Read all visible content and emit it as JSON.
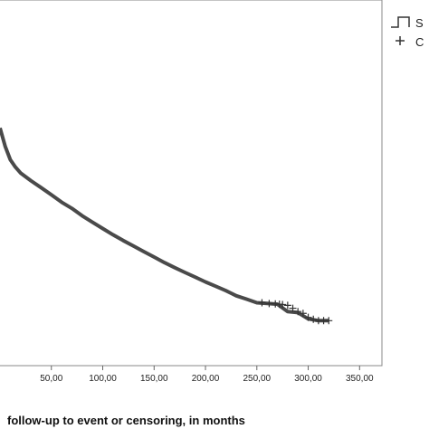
{
  "chart_data": {
    "type": "line",
    "title": "",
    "xlabel": "follow-up to event or censoring, in months",
    "ylabel": "",
    "xlim": [
      0,
      370
    ],
    "ylim": [
      0,
      1
    ],
    "grid": false,
    "x_ticks": [
      {
        "value": 50,
        "label": "50,00"
      },
      {
        "value": 100,
        "label": "100,00"
      },
      {
        "value": 150,
        "label": "150,00"
      },
      {
        "value": 200,
        "label": "200,00"
      },
      {
        "value": 250,
        "label": "250,00"
      },
      {
        "value": 300,
        "label": "300,00"
      },
      {
        "value": 350,
        "label": "350,00"
      }
    ],
    "series": [
      {
        "x": [
          0,
          5,
          10,
          15,
          20,
          30,
          40,
          50,
          60,
          70,
          80,
          90,
          100,
          110,
          120,
          130,
          140,
          150,
          160,
          170,
          180,
          190,
          200,
          210,
          220,
          230,
          240,
          250,
          260,
          270,
          280,
          290,
          300,
          310,
          320
        ],
        "y": [
          0.65,
          0.6,
          0.563,
          0.543,
          0.527,
          0.506,
          0.487,
          0.467,
          0.447,
          0.43,
          0.41,
          0.392,
          0.375,
          0.358,
          0.342,
          0.327,
          0.312,
          0.297,
          0.282,
          0.268,
          0.255,
          0.242,
          0.229,
          0.217,
          0.205,
          0.191,
          0.182,
          0.172,
          0.17,
          0.168,
          0.148,
          0.145,
          0.128,
          0.123,
          0.123
        ]
      }
    ],
    "censored": {
      "x": [
        255,
        262,
        268,
        272,
        275,
        280,
        285,
        290,
        295,
        300,
        305,
        310,
        315,
        320
      ],
      "y": [
        0.172,
        0.17,
        0.169,
        0.168,
        0.167,
        0.165,
        0.157,
        0.148,
        0.143,
        0.132,
        0.127,
        0.123,
        0.123,
        0.123
      ]
    },
    "legend": {
      "position": "top-right",
      "entries": [
        {
          "symbol": "step",
          "label": "S"
        },
        {
          "symbol": "plus",
          "label": "C"
        }
      ]
    }
  }
}
